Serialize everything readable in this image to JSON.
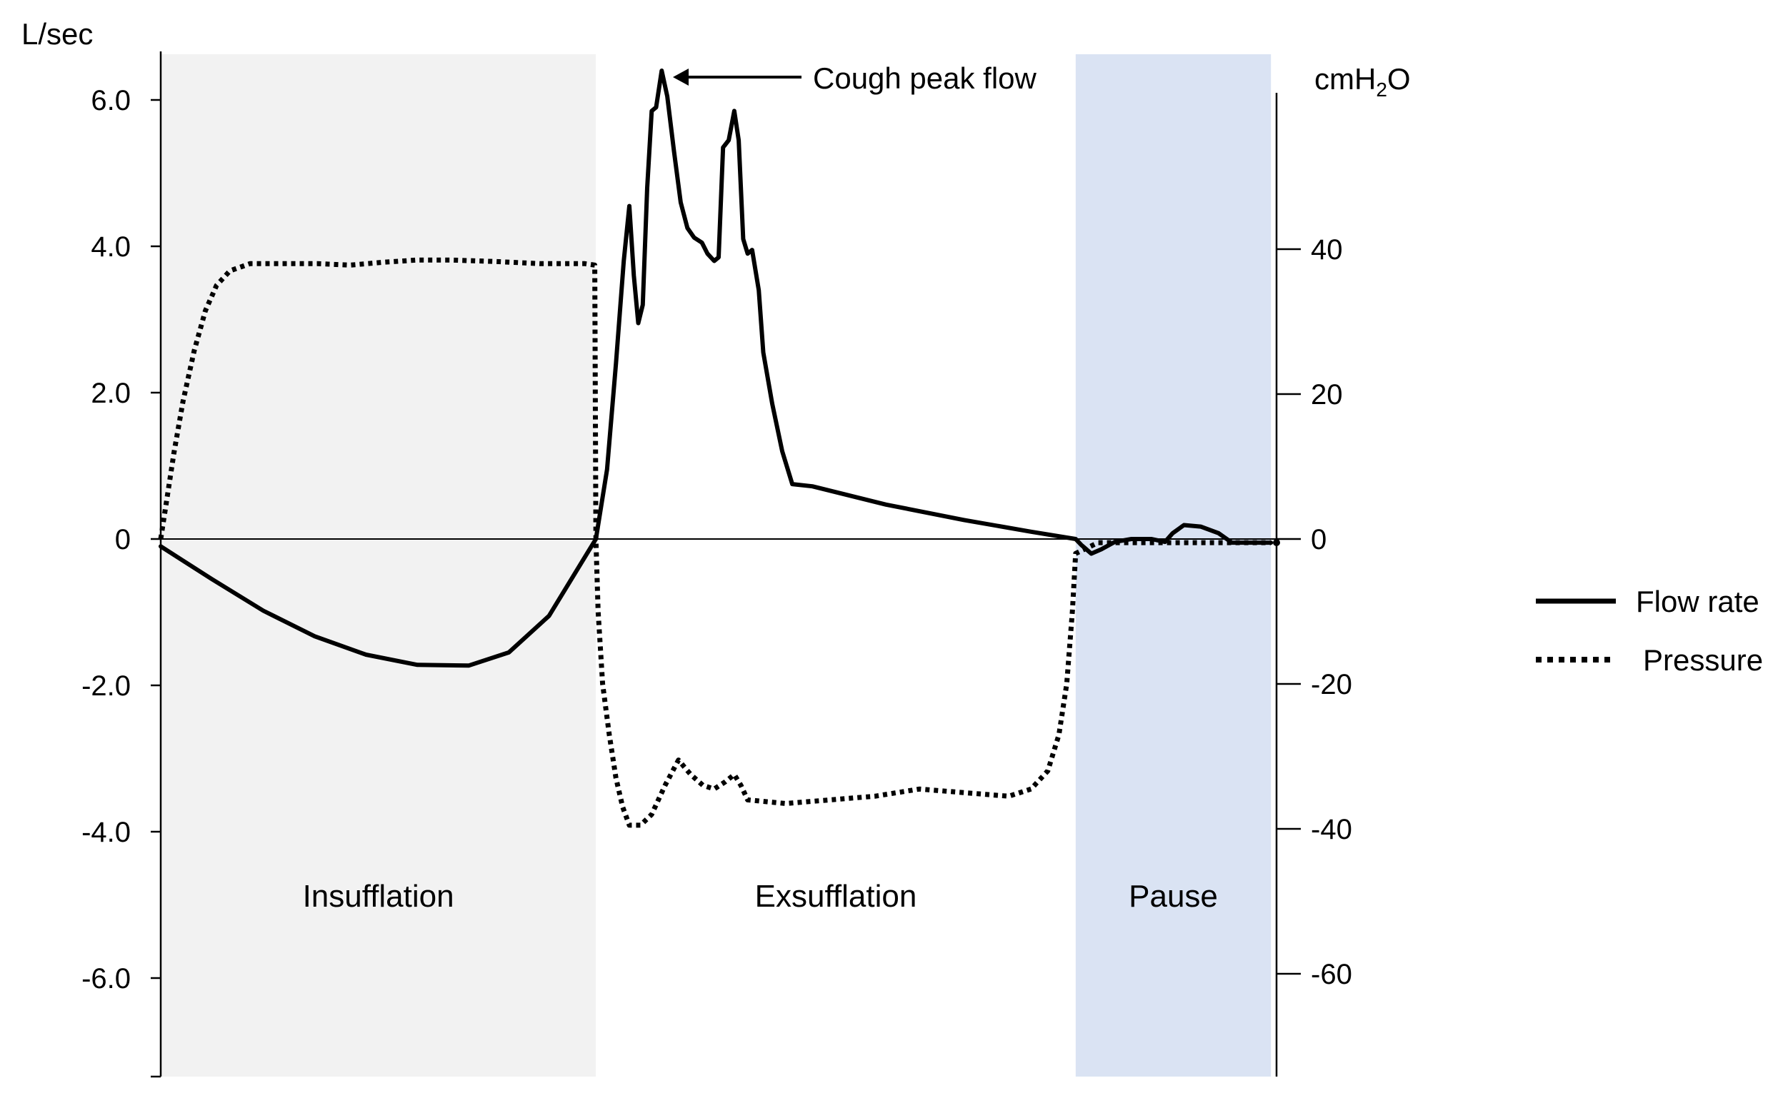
{
  "chart_data": {
    "type": "line",
    "title": "",
    "y_left_label": "L/sec",
    "y_right_label": "cmH2O",
    "y_left_ylim": [
      -7.4,
      6.8
    ],
    "y_right_ylim": [
      -74,
      68
    ],
    "x_range": [
      0,
      1
    ],
    "y_left_ticks": [
      {
        "value": 6.0,
        "label": "6.0"
      },
      {
        "value": 4.0,
        "label": "4.0"
      },
      {
        "value": 2.0,
        "label": "2.0"
      },
      {
        "value": 0,
        "label": "0"
      },
      {
        "value": -2.0,
        "label": "-2.0"
      },
      {
        "value": -4.0,
        "label": "-4.0"
      },
      {
        "value": -6.0,
        "label": "-6.0"
      }
    ],
    "y_right_ticks": [
      {
        "value": 40,
        "label": "40"
      },
      {
        "value": 20,
        "label": "20"
      },
      {
        "value": 0,
        "label": "0"
      },
      {
        "value": -20,
        "label": "-20"
      },
      {
        "value": -40,
        "label": "-40"
      },
      {
        "value": -60,
        "label": "-60"
      }
    ],
    "phases": [
      {
        "name": "Insufflation",
        "start": 0.0,
        "end": 0.39,
        "color": "#f2f2f2"
      },
      {
        "name": "Exsufflation",
        "start": 0.39,
        "end": 0.82,
        "color": "#ffffff"
      },
      {
        "name": "Pause",
        "start": 0.82,
        "end": 0.995,
        "color": "#dae3f3"
      }
    ],
    "annotations": [
      {
        "text": "Cough peak flow",
        "x": 0.449,
        "y": 6.4,
        "axis": "left"
      }
    ],
    "series": [
      {
        "name": "Flow rate",
        "axis": "left",
        "style": "solid",
        "color": "#000000",
        "points": [
          [
            0.0,
            -0.1
          ],
          [
            0.046,
            -0.55
          ],
          [
            0.092,
            -0.98
          ],
          [
            0.138,
            -1.33
          ],
          [
            0.184,
            -1.58
          ],
          [
            0.23,
            -1.72
          ],
          [
            0.276,
            -1.73
          ],
          [
            0.312,
            -1.55
          ],
          [
            0.348,
            -1.05
          ],
          [
            0.372,
            -0.45
          ],
          [
            0.39,
            0.0
          ],
          [
            0.4,
            0.95
          ],
          [
            0.408,
            2.4
          ],
          [
            0.415,
            3.8
          ],
          [
            0.42,
            4.55
          ],
          [
            0.424,
            3.6
          ],
          [
            0.428,
            2.95
          ],
          [
            0.432,
            3.2
          ],
          [
            0.436,
            4.8
          ],
          [
            0.44,
            5.85
          ],
          [
            0.444,
            5.9
          ],
          [
            0.449,
            6.4
          ],
          [
            0.454,
            6.05
          ],
          [
            0.46,
            5.3
          ],
          [
            0.466,
            4.6
          ],
          [
            0.472,
            4.25
          ],
          [
            0.478,
            4.12
          ],
          [
            0.485,
            4.05
          ],
          [
            0.49,
            3.9
          ],
          [
            0.496,
            3.8
          ],
          [
            0.5,
            3.85
          ],
          [
            0.504,
            5.35
          ],
          [
            0.509,
            5.45
          ],
          [
            0.514,
            5.85
          ],
          [
            0.518,
            5.45
          ],
          [
            0.522,
            4.1
          ],
          [
            0.526,
            3.9
          ],
          [
            0.53,
            3.95
          ],
          [
            0.536,
            3.4
          ],
          [
            0.54,
            2.55
          ],
          [
            0.548,
            1.85
          ],
          [
            0.557,
            1.2
          ],
          [
            0.566,
            0.75
          ],
          [
            0.584,
            0.72
          ],
          [
            0.65,
            0.47
          ],
          [
            0.72,
            0.26
          ],
          [
            0.78,
            0.1
          ],
          [
            0.82,
            0.0
          ],
          [
            0.825,
            -0.08
          ],
          [
            0.834,
            -0.2
          ],
          [
            0.843,
            -0.14
          ],
          [
            0.855,
            -0.04
          ],
          [
            0.87,
            0.0
          ],
          [
            0.888,
            0.0
          ],
          [
            0.9,
            -0.04
          ],
          [
            0.907,
            0.08
          ],
          [
            0.917,
            0.19
          ],
          [
            0.932,
            0.17
          ],
          [
            0.948,
            0.08
          ],
          [
            0.96,
            -0.05
          ],
          [
            0.995,
            -0.05
          ]
        ]
      },
      {
        "name": "Pressure",
        "axis": "right",
        "style": "dotted",
        "color": "#000000",
        "points": [
          [
            0.0,
            0.0
          ],
          [
            0.005,
            5.0
          ],
          [
            0.012,
            12.0
          ],
          [
            0.02,
            19.0
          ],
          [
            0.03,
            26.0
          ],
          [
            0.04,
            31.5
          ],
          [
            0.05,
            35.0
          ],
          [
            0.062,
            37.0
          ],
          [
            0.08,
            38.0
          ],
          [
            0.11,
            38.0
          ],
          [
            0.14,
            38.0
          ],
          [
            0.17,
            37.8
          ],
          [
            0.2,
            38.2
          ],
          [
            0.23,
            38.5
          ],
          [
            0.26,
            38.5
          ],
          [
            0.3,
            38.3
          ],
          [
            0.34,
            38.0
          ],
          [
            0.38,
            38.0
          ],
          [
            0.389,
            37.8
          ],
          [
            0.39,
            0.0
          ],
          [
            0.392,
            -10.0
          ],
          [
            0.396,
            -20.0
          ],
          [
            0.402,
            -27.0
          ],
          [
            0.408,
            -33.0
          ],
          [
            0.414,
            -37.0
          ],
          [
            0.42,
            -39.5
          ],
          [
            0.43,
            -39.5
          ],
          [
            0.44,
            -38.0
          ],
          [
            0.452,
            -34.0
          ],
          [
            0.464,
            -30.5
          ],
          [
            0.475,
            -32.5
          ],
          [
            0.486,
            -34.0
          ],
          [
            0.496,
            -34.5
          ],
          [
            0.506,
            -33.5
          ],
          [
            0.514,
            -32.5
          ],
          [
            0.52,
            -34.0
          ],
          [
            0.526,
            -36.0
          ],
          [
            0.56,
            -36.5
          ],
          [
            0.6,
            -36.0
          ],
          [
            0.64,
            -35.5
          ],
          [
            0.68,
            -34.5
          ],
          [
            0.72,
            -35.0
          ],
          [
            0.76,
            -35.5
          ],
          [
            0.78,
            -34.5
          ],
          [
            0.795,
            -32.0
          ],
          [
            0.805,
            -27.0
          ],
          [
            0.812,
            -20.0
          ],
          [
            0.817,
            -10.0
          ],
          [
            0.82,
            -2.0
          ],
          [
            0.84,
            -0.5
          ],
          [
            0.9,
            -0.5
          ],
          [
            0.96,
            -0.5
          ],
          [
            0.995,
            -0.5
          ]
        ]
      }
    ],
    "legend": {
      "position": "right",
      "entries": [
        {
          "label": "Flow rate",
          "style": "solid"
        },
        {
          "label": "Pressure",
          "style": "dotted"
        }
      ]
    },
    "grid": false
  }
}
